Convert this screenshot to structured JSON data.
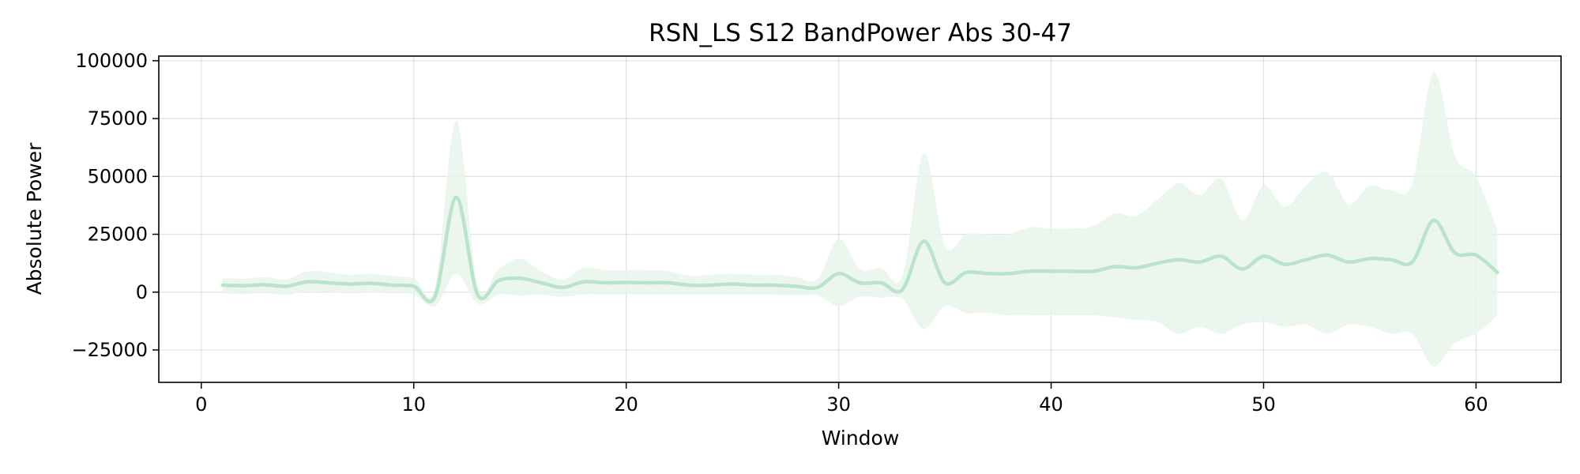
{
  "chart_data": {
    "type": "line",
    "title": "RSN_LS S12 BandPower Abs 30-47",
    "xlabel": "Window",
    "ylabel": "Absolute Power",
    "xlim": [
      -2,
      64
    ],
    "ylim": [
      -39000,
      102000
    ],
    "xticks": [
      0,
      10,
      20,
      30,
      40,
      50,
      60
    ],
    "xtick_labels": [
      "0",
      "10",
      "20",
      "30",
      "40",
      "50",
      "60"
    ],
    "yticks": [
      -25000,
      0,
      25000,
      50000,
      75000,
      100000
    ],
    "ytick_labels": [
      "−25000",
      "0",
      "25000",
      "50000",
      "75000",
      "100000"
    ],
    "grid": true,
    "line_color": "#b9e4c9",
    "band_color": "#e8f5ec",
    "series": [
      {
        "x": [
          1,
          2,
          3,
          4,
          5,
          6,
          7,
          8,
          9,
          10,
          11,
          12,
          13,
          14,
          15,
          16,
          17,
          18,
          19,
          20,
          21,
          22,
          23,
          24,
          25,
          26,
          27,
          28,
          29,
          30,
          31,
          32,
          33,
          34,
          35,
          36,
          37,
          38,
          39,
          40,
          41,
          42,
          43,
          44,
          45,
          46,
          47,
          48,
          49,
          50,
          51,
          52,
          53,
          54,
          55,
          56,
          57,
          58,
          59,
          60,
          61
        ],
        "mean": [
          3000,
          2800,
          3200,
          2500,
          4500,
          4000,
          3500,
          3800,
          3000,
          2500,
          -2000,
          41000,
          -1000,
          5000,
          6000,
          4000,
          2000,
          4500,
          4000,
          4200,
          4000,
          4000,
          3000,
          3000,
          3500,
          3000,
          3000,
          2500,
          2000,
          8000,
          4000,
          4000,
          1000,
          22000,
          4000,
          8500,
          8000,
          8000,
          9000,
          9000,
          9000,
          9000,
          11000,
          10500,
          12500,
          14000,
          13000,
          15500,
          10000,
          15500,
          12000,
          14000,
          16000,
          13000,
          14500,
          14000,
          13000,
          31000,
          17000,
          16000,
          8500
        ],
        "lower": [
          -500,
          -800,
          -500,
          -1200,
          500,
          0,
          -500,
          -200,
          -500,
          -1000,
          -6000,
          8000,
          -5000,
          -1000,
          -1500,
          -1200,
          -2000,
          -1000,
          -1000,
          -1000,
          -1000,
          -1000,
          -1000,
          -1000,
          -1000,
          -1000,
          -1200,
          -1500,
          -1500,
          -6000,
          -2000,
          -2500,
          -3000,
          -16000,
          -6000,
          -9000,
          -9000,
          -10000,
          -10000,
          -10000,
          -10000,
          -10000,
          -11000,
          -12000,
          -13000,
          -18000,
          -15000,
          -18000,
          -14000,
          -13000,
          -15000,
          -14000,
          -18000,
          -14000,
          -15000,
          -18000,
          -18000,
          -32000,
          -22000,
          -18000,
          -10000
        ],
        "upper": [
          6000,
          5800,
          6500,
          5500,
          9000,
          8500,
          7500,
          8000,
          7000,
          6000,
          2000,
          74000,
          3000,
          10000,
          14500,
          9000,
          5500,
          10500,
          9500,
          9500,
          9500,
          9000,
          7000,
          7500,
          8000,
          7500,
          7500,
          6500,
          5500,
          23000,
          10000,
          10500,
          7000,
          60000,
          20000,
          25000,
          25000,
          25000,
          28000,
          27500,
          27500,
          28500,
          34000,
          33000,
          40000,
          47000,
          42000,
          49000,
          31000,
          46000,
          37000,
          46000,
          52000,
          38000,
          46000,
          44000,
          47000,
          95000,
          59000,
          50000,
          27000
        ]
      }
    ]
  }
}
